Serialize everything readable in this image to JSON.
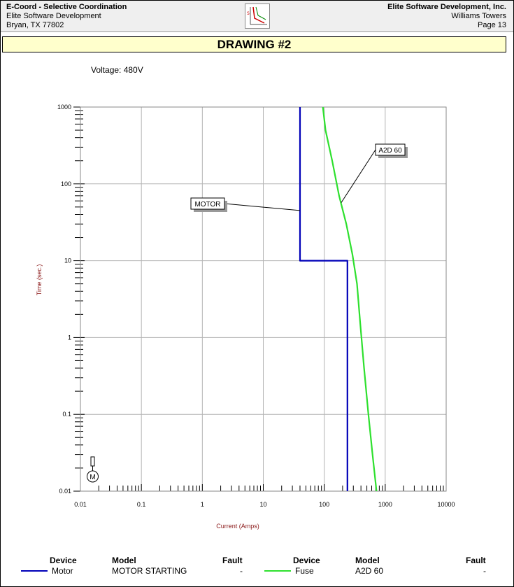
{
  "header": {
    "app_title": "E-Coord - Selective Coordination",
    "company_left": "Elite Software Development",
    "address": "Bryan, TX 77802",
    "company_right": "Elite Software Development, Inc.",
    "project": "Williams Towers",
    "page": "Page 13"
  },
  "title": "DRAWING #2",
  "voltage": "Voltage: 480V",
  "colors": {
    "motor": "#0000b8",
    "fuse": "#2ee02e",
    "grid": "#b4b4b4",
    "axis_label": "#8b1a1a",
    "title_bg": "#ffffcc"
  },
  "chart_data": {
    "type": "line",
    "x_scale": "log",
    "y_scale": "log",
    "xlabel": "Current (Amps)",
    "ylabel": "Time (sec.)",
    "xlim": [
      0.01,
      10000
    ],
    "ylim": [
      0.01,
      1000
    ],
    "x_ticks": [
      "0.01",
      "0.1",
      "1",
      "10",
      "100",
      "1000",
      "10000"
    ],
    "y_ticks": [
      "0.01",
      "0.1",
      "1",
      "10",
      "100",
      "1000"
    ],
    "grid": true,
    "series": [
      {
        "name": "MOTOR",
        "color": "#0000b8",
        "points": [
          [
            40,
            1000
          ],
          [
            40,
            10
          ],
          [
            240,
            10
          ],
          [
            240,
            0.01
          ]
        ]
      },
      {
        "name": "A2D 60",
        "color": "#2ee02e",
        "points": [
          [
            95,
            1000
          ],
          [
            105,
            500
          ],
          [
            135,
            200
          ],
          [
            175,
            70
          ],
          [
            230,
            30
          ],
          [
            290,
            12
          ],
          [
            345,
            5
          ],
          [
            390,
            1.5
          ],
          [
            450,
            0.4
          ],
          [
            530,
            0.1
          ],
          [
            620,
            0.03
          ],
          [
            720,
            0.01
          ]
        ]
      }
    ],
    "annotations": [
      {
        "text": "MOTOR",
        "series": "MOTOR",
        "x": 40,
        "y": 45
      },
      {
        "text": "A2D 60",
        "series": "A2D 60",
        "x": 190,
        "y": 57
      }
    ],
    "symbol": "M"
  },
  "legend": {
    "headers": {
      "device": "Device",
      "model": "Model",
      "fault": "Fault"
    },
    "rows": [
      {
        "device": "Motor",
        "model": "MOTOR STARTING",
        "fault": "-"
      },
      {
        "device": "Fuse",
        "model": "A2D 60",
        "fault": "-"
      }
    ]
  }
}
